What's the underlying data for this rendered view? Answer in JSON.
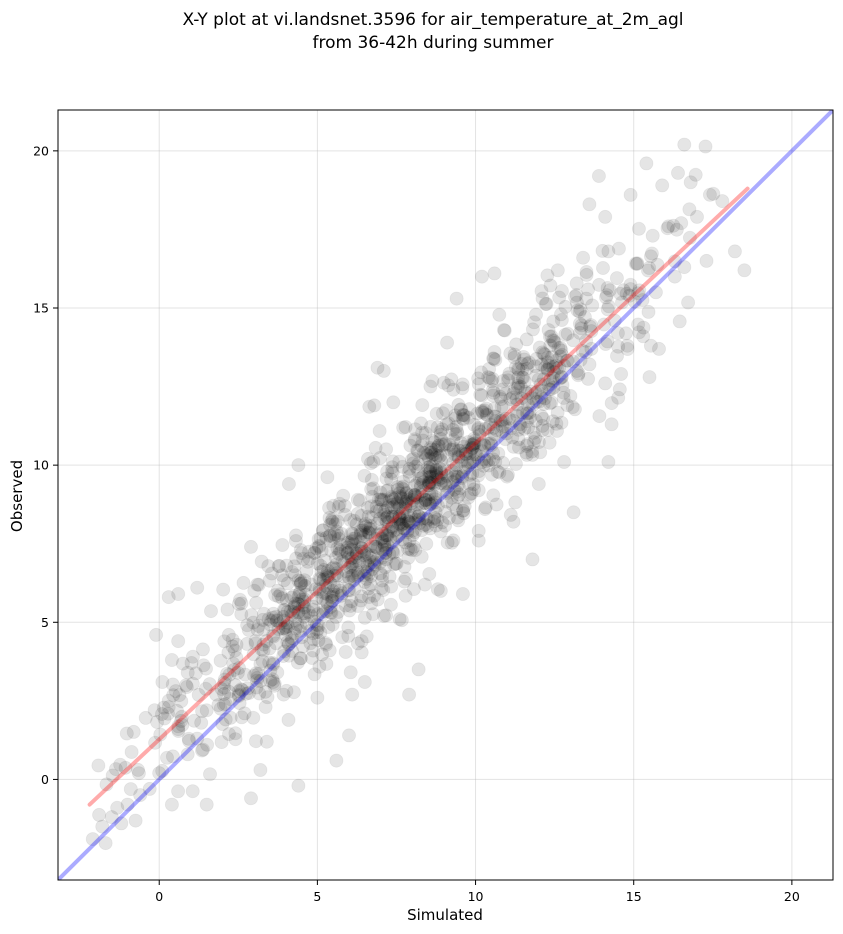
{
  "chart_data": {
    "type": "scatter",
    "title_line1": "X-Y plot at vi.landsnet.3596 for air_temperature_at_2m_agl",
    "title_line2": "from 36-42h during summer",
    "xlabel": "Simulated",
    "ylabel": "Observed",
    "xlim": [
      -3.2,
      21.3
    ],
    "ylim": [
      -3.2,
      21.3
    ],
    "xticks": [
      0,
      5,
      10,
      15,
      20
    ],
    "yticks": [
      0,
      5,
      10,
      15,
      20
    ],
    "grid": true,
    "point_color": "#000000",
    "point_alpha": 0.1,
    "series": [
      {
        "kind": "points",
        "points": [
          [
            -2.1,
            -1.9
          ],
          [
            -1.8,
            -1.5
          ],
          [
            -1.5,
            -1.2
          ],
          [
            -1.2,
            -1.4
          ],
          [
            -1.0,
            -0.8
          ],
          [
            -0.6,
            -0.5
          ],
          [
            -0.3,
            -0.3
          ],
          [
            0.0,
            0.2
          ],
          [
            0.4,
            -0.8
          ],
          [
            -0.1,
            4.6
          ],
          [
            0.3,
            5.8
          ],
          [
            0.6,
            5.9
          ],
          [
            1.2,
            6.1
          ],
          [
            0.1,
            3.1
          ],
          [
            0.4,
            3.8
          ],
          [
            0.6,
            4.4
          ],
          [
            0.9,
            3.4
          ],
          [
            0.3,
            2.3
          ],
          [
            0.6,
            1.6
          ],
          [
            0.9,
            0.8
          ],
          [
            1.2,
            1.3
          ],
          [
            1.5,
            2.2
          ],
          [
            1.5,
            -0.8
          ],
          [
            1.8,
            2.7
          ],
          [
            2.1,
            2.4
          ],
          [
            2.4,
            3.0
          ],
          [
            2.2,
            4.6
          ],
          [
            2.6,
            5.6
          ],
          [
            2.9,
            7.4
          ],
          [
            3.1,
            6.2
          ],
          [
            2.7,
            2.1
          ],
          [
            3.0,
            3.3
          ],
          [
            3.3,
            4.1
          ],
          [
            3.6,
            3.7
          ],
          [
            3.9,
            4.8
          ],
          [
            3.2,
            0.3
          ],
          [
            2.9,
            -0.6
          ],
          [
            3.4,
            1.2
          ],
          [
            4.1,
            9.4
          ],
          [
            4.4,
            10.0
          ],
          [
            4.2,
            6.6
          ],
          [
            4.5,
            7.2
          ],
          [
            4.8,
            5.2
          ],
          [
            5.1,
            6.8
          ],
          [
            5.4,
            8.1
          ],
          [
            5.7,
            7.3
          ],
          [
            4.4,
            -0.2
          ],
          [
            5.0,
            2.6
          ],
          [
            5.6,
            0.6
          ],
          [
            6.0,
            1.4
          ],
          [
            6.1,
            2.7
          ],
          [
            6.5,
            3.1
          ],
          [
            6.4,
            4.4
          ],
          [
            6.7,
            5.6
          ],
          [
            6.9,
            7.8
          ],
          [
            7.1,
            8.9
          ],
          [
            6.6,
            10.2
          ],
          [
            6.8,
            11.9
          ],
          [
            6.9,
            13.1
          ],
          [
            7.1,
            13.0
          ],
          [
            7.4,
            12.0
          ],
          [
            7.6,
            9.1
          ],
          [
            7.9,
            8.2
          ],
          [
            8.1,
            7.3
          ],
          [
            8.3,
            9.6
          ],
          [
            8.6,
            10.4
          ],
          [
            8.8,
            11.2
          ],
          [
            7.9,
            2.7
          ],
          [
            8.2,
            3.5
          ],
          [
            7.6,
            5.1
          ],
          [
            8.4,
            6.2
          ],
          [
            8.9,
            6.0
          ],
          [
            9.1,
            13.9
          ],
          [
            9.4,
            15.3
          ],
          [
            9.3,
            12.4
          ],
          [
            9.6,
            11.6
          ],
          [
            9.9,
            10.1
          ],
          [
            10.1,
            9.2
          ],
          [
            10.3,
            8.6
          ],
          [
            9.6,
            5.9
          ],
          [
            10.1,
            7.6
          ],
          [
            10.4,
            12.8
          ],
          [
            10.6,
            13.6
          ],
          [
            10.9,
            14.3
          ],
          [
            10.2,
            16.0
          ],
          [
            10.6,
            16.1
          ],
          [
            11.1,
            12.1
          ],
          [
            11.4,
            11.3
          ],
          [
            11.6,
            10.4
          ],
          [
            11.2,
            8.2
          ],
          [
            11.8,
            7.0
          ],
          [
            12.0,
            9.4
          ],
          [
            12.2,
            13.1
          ],
          [
            12.5,
            13.9
          ],
          [
            12.7,
            14.8
          ],
          [
            12.6,
            16.2
          ],
          [
            12.8,
            10.1
          ],
          [
            13.1,
            8.5
          ],
          [
            13.0,
            12.2
          ],
          [
            13.3,
            14.5
          ],
          [
            13.5,
            15.3
          ],
          [
            13.4,
            16.6
          ],
          [
            13.6,
            18.3
          ],
          [
            13.9,
            19.2
          ],
          [
            14.1,
            17.9
          ],
          [
            14.2,
            16.8
          ],
          [
            14.4,
            14.6
          ],
          [
            14.1,
            12.6
          ],
          [
            14.3,
            11.3
          ],
          [
            14.2,
            10.1
          ],
          [
            14.6,
            12.9
          ],
          [
            14.8,
            13.8
          ],
          [
            14.9,
            15.6
          ],
          [
            15.1,
            16.4
          ],
          [
            15.3,
            14.1
          ],
          [
            15.5,
            12.8
          ],
          [
            15.8,
            13.7
          ],
          [
            15.6,
            17.3
          ],
          [
            15.9,
            18.9
          ],
          [
            16.1,
            17.6
          ],
          [
            16.3,
            16.0
          ],
          [
            16.5,
            17.7
          ],
          [
            16.6,
            20.2
          ],
          [
            16.8,
            19.0
          ],
          [
            16.4,
            19.3
          ],
          [
            17.0,
            17.9
          ],
          [
            17.3,
            16.5
          ],
          [
            15.4,
            19.6
          ],
          [
            14.9,
            18.6
          ],
          [
            18.2,
            16.8
          ],
          [
            18.5,
            16.2
          ],
          [
            17.8,
            18.4
          ],
          [
            10.8,
            11.4
          ],
          [
            11.9,
            12.3
          ],
          [
            9.8,
            9.4
          ],
          [
            8.7,
            8.3
          ],
          [
            7.5,
            7.7
          ],
          [
            6.3,
            6.5
          ],
          [
            5.3,
            5.9
          ],
          [
            4.2,
            4.5
          ],
          [
            3.6,
            3.1
          ],
          [
            2.8,
            2.9
          ],
          [
            12.4,
            12.0
          ],
          [
            13.2,
            13.0
          ],
          [
            14.5,
            14.2
          ],
          [
            15.7,
            15.5
          ],
          [
            16.6,
            16.3
          ],
          [
            9.3,
            10.8
          ],
          [
            10.6,
            11.8
          ]
        ]
      },
      {
        "kind": "cluster",
        "seed": 17,
        "n": 1250,
        "x_mean": 7.6,
        "x_sd": 3.7,
        "x_min": -2.0,
        "x_max": 18.0,
        "intercept": 1.3,
        "slope": 0.95,
        "residual_sd": 1.15
      }
    ],
    "lines": [
      {
        "name": "",
        "color": "#ff0000",
        "alpha": 0.33,
        "x": [
          -2.2,
          18.6
        ],
        "y": [
          -0.8,
          18.8
        ]
      },
      {
        "name": "",
        "color": "#0000ff",
        "alpha": 0.33,
        "x": [
          -3.2,
          21.3
        ],
        "y": [
          -3.2,
          21.3
        ]
      }
    ]
  }
}
